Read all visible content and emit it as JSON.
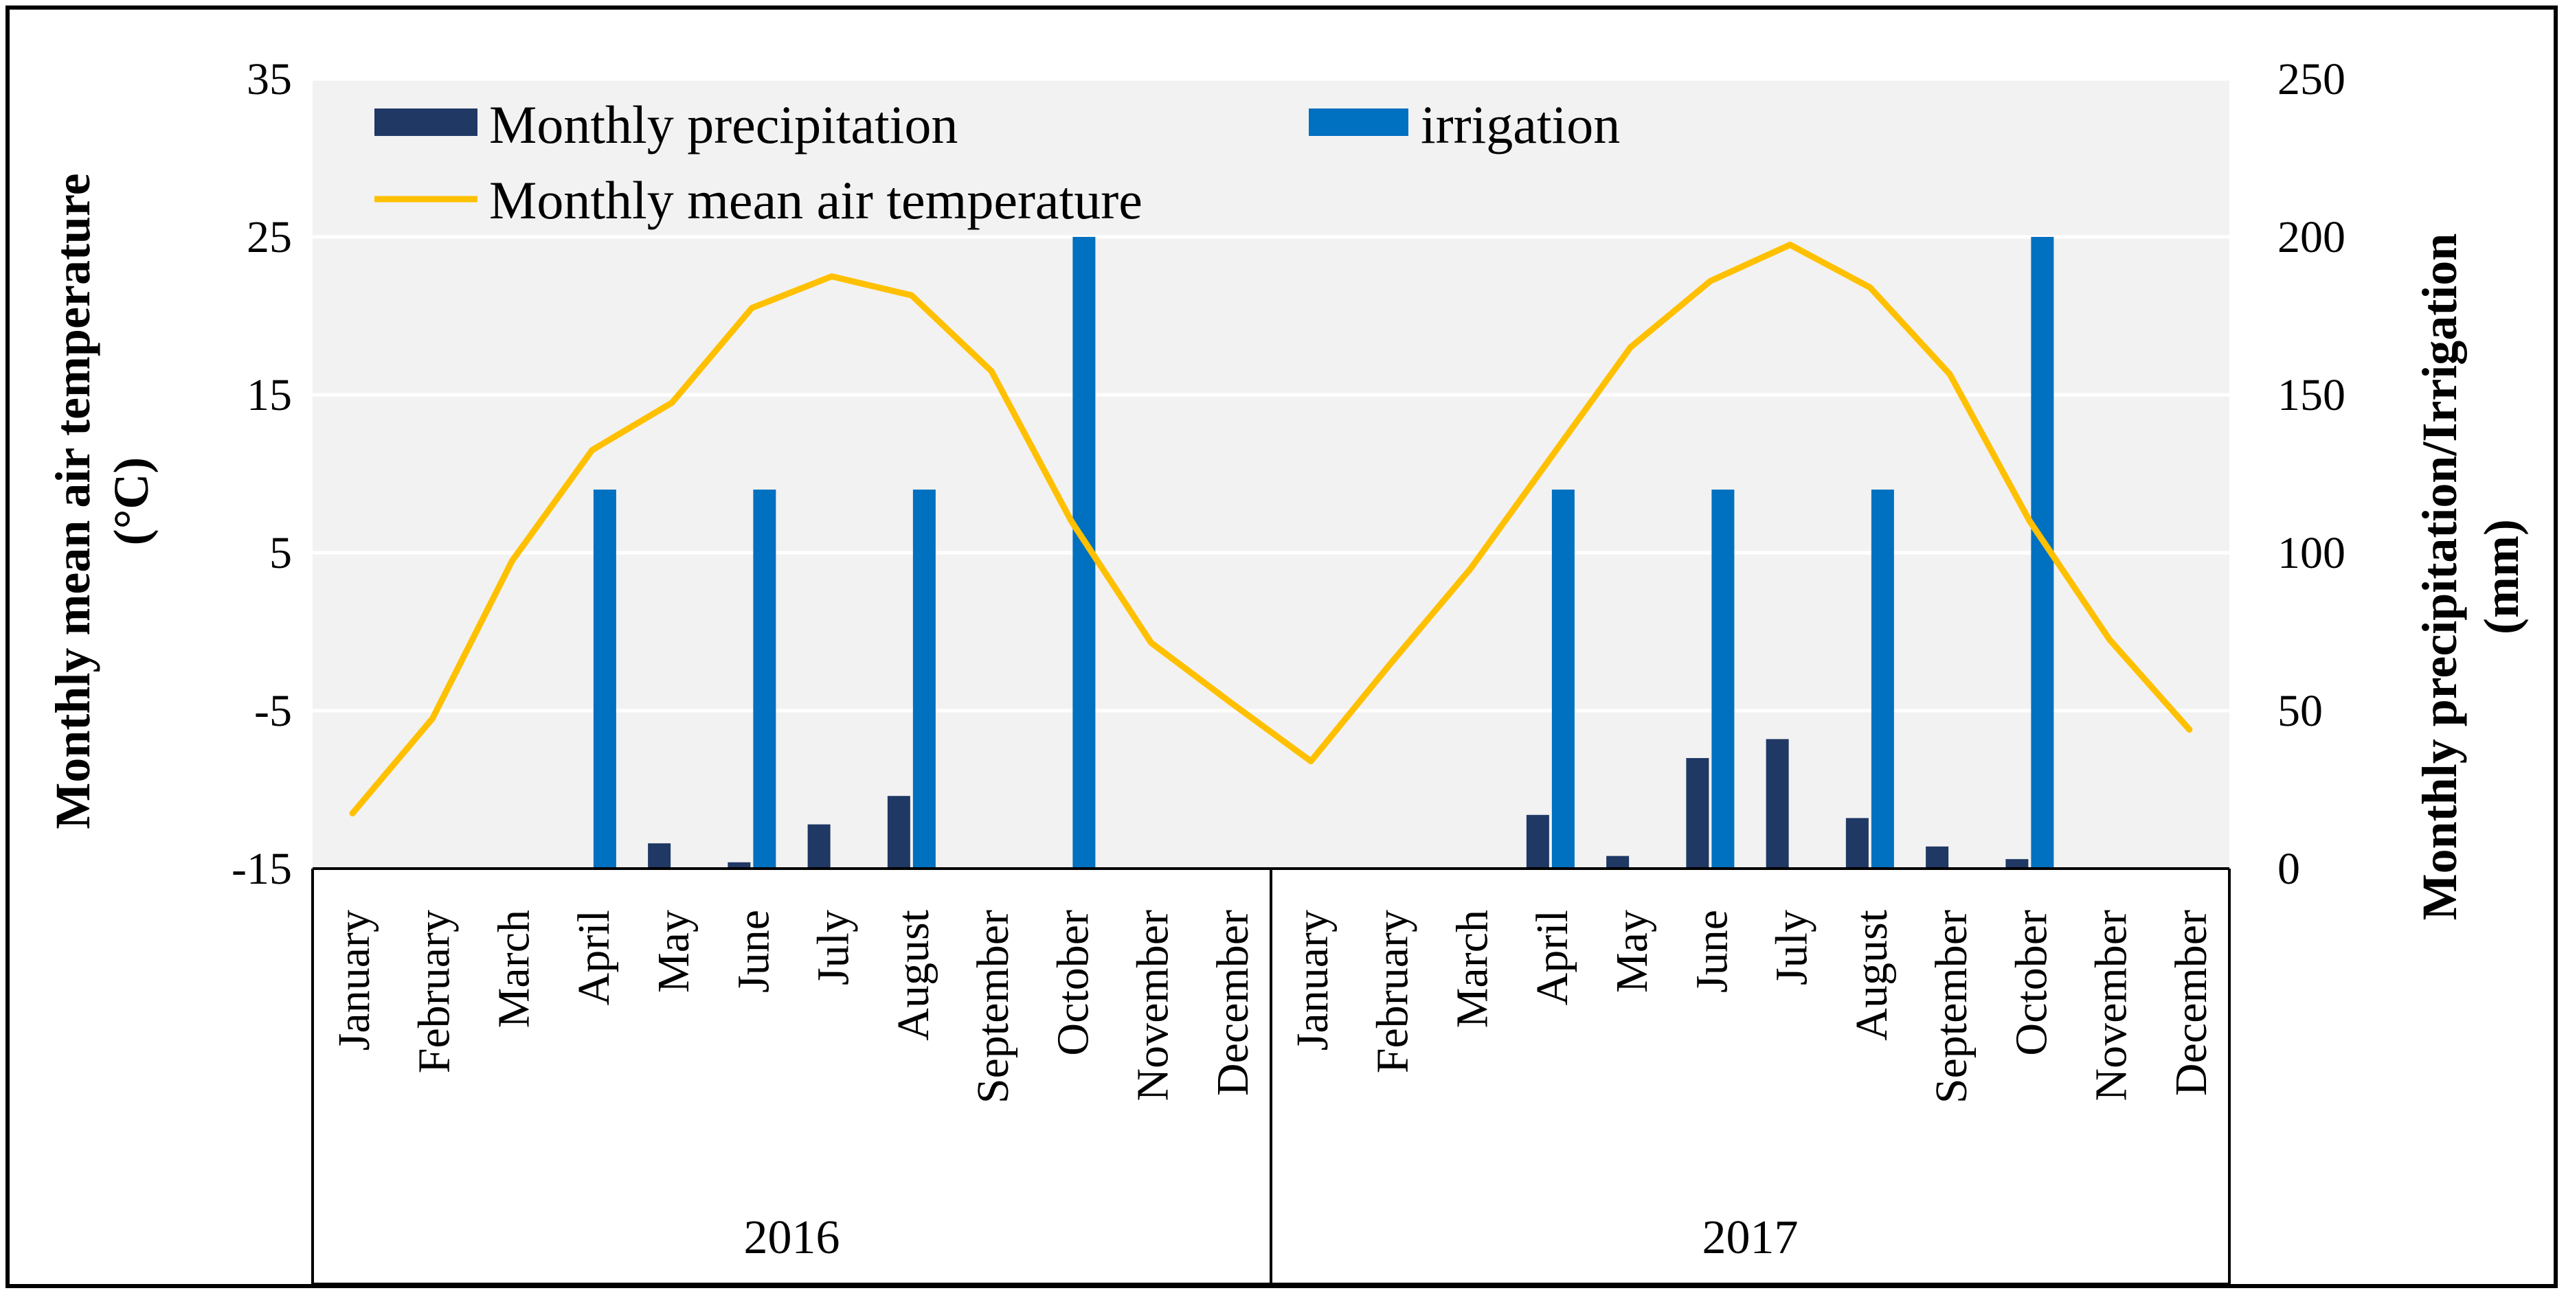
{
  "chart_data": {
    "type": "bar+line",
    "title": "",
    "legend": {
      "placement": "top-left inside plot",
      "entries": [
        {
          "key": "precip",
          "label": "Monthly precipitation",
          "color": "#1f3864",
          "kind": "bar"
        },
        {
          "key": "irrig",
          "label": "irrigation",
          "color": "#0070c0",
          "kind": "bar"
        },
        {
          "key": "temp",
          "label": "Monthly mean air temperature",
          "color": "#ffc000",
          "kind": "line"
        }
      ]
    },
    "y_left": {
      "label_line1": "Monthly  mean air temperature",
      "label_line2": "(°C)",
      "min": -15,
      "max": 35,
      "ticks": [
        35,
        25,
        15,
        5,
        -5,
        -15
      ],
      "tick_labels": [
        "35",
        "25",
        "15",
        "5",
        "-5",
        "-15"
      ]
    },
    "y_right": {
      "label_line1": "Monthly  precipitation/Irrigation",
      "label_line2": "(mm)",
      "min": 0,
      "max": 250,
      "ticks": [
        250,
        200,
        150,
        100,
        50,
        0
      ],
      "tick_labels": [
        "250",
        "200",
        "150",
        "100",
        "50",
        "0"
      ]
    },
    "grid": true,
    "groups": [
      {
        "label": "2016",
        "months": [
          "January",
          "February",
          "March",
          "April",
          "May",
          "June",
          "July",
          "August",
          "September",
          "October",
          "November",
          "December"
        ]
      },
      {
        "label": "2017",
        "months": [
          "January",
          "February",
          "March",
          "April",
          "May",
          "June",
          "July",
          "August",
          "September",
          "October",
          "November",
          "December"
        ]
      }
    ],
    "series": [
      {
        "name": "Monthly precipitation",
        "axis": "right",
        "values": [
          0,
          0,
          0,
          0,
          8,
          2,
          14,
          23,
          0,
          0,
          0,
          0,
          0,
          0,
          0,
          17,
          4,
          35,
          41,
          16,
          7,
          3,
          0,
          0
        ]
      },
      {
        "name": "irrigation",
        "axis": "right",
        "values": [
          0,
          0,
          0,
          120,
          0,
          120,
          0,
          120,
          0,
          200,
          0,
          0,
          0,
          0,
          0,
          120,
          0,
          120,
          0,
          120,
          0,
          200,
          0,
          0
        ]
      },
      {
        "name": "Monthly mean air temperature",
        "axis": "left",
        "values": [
          -11.5,
          -5.5,
          4.5,
          11.5,
          14.5,
          20.5,
          22.5,
          21.3,
          16.5,
          7.0,
          -0.7,
          -4.5,
          -8.2,
          -2.0,
          4.0,
          11.0,
          18.0,
          22.2,
          24.5,
          21.8,
          16.3,
          7.0,
          -0.5,
          -6.2
        ]
      }
    ]
  }
}
